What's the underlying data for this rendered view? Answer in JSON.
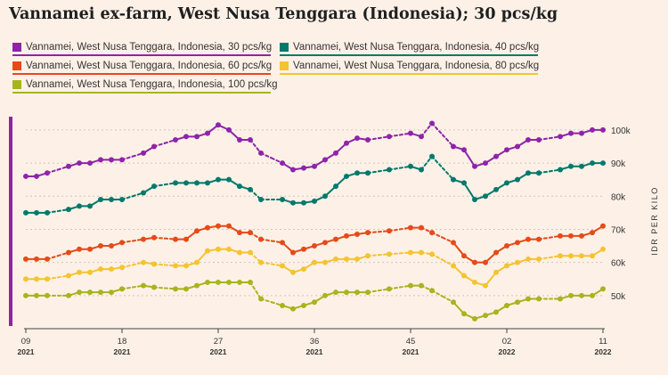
{
  "title": "Vannamei ex-farm, West Nusa Tenggara (Indonesia); 30 pcs/kg",
  "colors": {
    "accent_bar": "#8e24aa",
    "grid": "#cfc6bd",
    "text": "#222222"
  },
  "chart_data": {
    "type": "line",
    "title": "Vannamei ex-farm, West Nusa Tenggara (Indonesia); 30 pcs/kg",
    "ylabel": "IDR PER KILO",
    "ylim": [
      40000,
      104000
    ],
    "yticks": [
      {
        "value": 50000,
        "label": "50k"
      },
      {
        "value": 60000,
        "label": "60k"
      },
      {
        "value": 70000,
        "label": "70k"
      },
      {
        "value": 80000,
        "label": "80k"
      },
      {
        "value": 90000,
        "label": "90k"
      },
      {
        "value": 100000,
        "label": "100k"
      }
    ],
    "xticks": [
      {
        "week": "09",
        "year": "2021",
        "index": 0
      },
      {
        "week": "18",
        "year": "2021",
        "index": 9
      },
      {
        "week": "27",
        "year": "2021",
        "index": 18
      },
      {
        "week": "36",
        "year": "2021",
        "index": 27
      },
      {
        "week": "45",
        "year": "2021",
        "index": 36
      },
      {
        "week": "02",
        "year": "2022",
        "index": 45
      },
      {
        "week": "11",
        "year": "2022",
        "index": 54
      }
    ],
    "grid": true,
    "legend_position": "top-left",
    "series": [
      {
        "name": "Vannamei, West Nusa Tenggara, Indonesia, 30 pcs/kg",
        "color": "#8e24aa",
        "values": [
          86000,
          86000,
          87000,
          null,
          89000,
          90000,
          90000,
          91000,
          91000,
          91000,
          null,
          93000,
          95000,
          null,
          97000,
          98000,
          98000,
          99000,
          101500,
          100000,
          97000,
          97000,
          93000,
          null,
          90000,
          88000,
          88500,
          89000,
          91000,
          93000,
          96000,
          97500,
          97000,
          null,
          98000,
          null,
          99000,
          98000,
          102000,
          null,
          95000,
          94000,
          89000,
          90000,
          92000,
          94000,
          95000,
          97000,
          97000,
          null,
          98000,
          99000,
          99000,
          100000,
          100000
        ],
        "dashed_from": [
          2,
          9,
          12,
          21,
          32,
          37,
          39,
          48
        ]
      },
      {
        "name": "Vannamei, West Nusa Tenggara, Indonesia, 40 pcs/kg",
        "color": "#00796b",
        "values": [
          75000,
          75000,
          75000,
          null,
          76000,
          77000,
          77000,
          79000,
          79000,
          79000,
          null,
          81000,
          83000,
          null,
          84000,
          84000,
          84000,
          84000,
          85000,
          85000,
          83000,
          82000,
          79000,
          null,
          79000,
          78000,
          78000,
          78500,
          80000,
          83000,
          86000,
          87000,
          87000,
          null,
          88000,
          null,
          89000,
          88000,
          92000,
          null,
          85000,
          84000,
          79000,
          80000,
          82000,
          84000,
          85000,
          87000,
          87000,
          null,
          88000,
          89000,
          89000,
          90000,
          90000
        ],
        "dashed_from": [
          2,
          9,
          12,
          21,
          32,
          37,
          39,
          48
        ]
      },
      {
        "name": "Vannamei, West Nusa Tenggara, Indonesia, 60 pcs/kg",
        "color": "#e64a19",
        "values": [
          61000,
          61000,
          61000,
          null,
          63000,
          64000,
          64000,
          65000,
          65000,
          66000,
          null,
          67000,
          67500,
          null,
          67000,
          67000,
          69500,
          70500,
          71000,
          71000,
          69000,
          69000,
          67000,
          null,
          66000,
          63000,
          64000,
          65000,
          66000,
          67000,
          68000,
          68500,
          69000,
          null,
          69500,
          null,
          70500,
          70500,
          69000,
          null,
          66000,
          62000,
          60000,
          60000,
          63000,
          65000,
          66000,
          67000,
          67000,
          null,
          68000,
          68000,
          68000,
          69000,
          71000
        ],
        "dashed_from": [
          2,
          9,
          12,
          21,
          32,
          37,
          39,
          48
        ]
      },
      {
        "name": "Vannamei, West Nusa Tenggara, Indonesia, 80 pcs/kg",
        "color": "#f4c430",
        "values": [
          55000,
          55000,
          55000,
          null,
          56000,
          57000,
          57000,
          58000,
          58000,
          58500,
          null,
          60000,
          59500,
          null,
          59000,
          59000,
          60000,
          63500,
          64000,
          64000,
          63000,
          63000,
          60000,
          null,
          59000,
          57000,
          58000,
          60000,
          60000,
          61000,
          61000,
          61000,
          62000,
          null,
          62500,
          null,
          63000,
          63000,
          62500,
          null,
          59000,
          56000,
          54000,
          53000,
          57000,
          59000,
          60000,
          61000,
          61000,
          null,
          62000,
          62000,
          62000,
          62000,
          64000
        ],
        "dashed_from": [
          2,
          9,
          12,
          21,
          32,
          37,
          39,
          48
        ]
      },
      {
        "name": "Vannamei, West Nusa Tenggara, Indonesia, 100 pcs/kg",
        "color": "#a8b41e",
        "values": [
          50000,
          50000,
          50000,
          null,
          50000,
          51000,
          51000,
          51000,
          51000,
          52000,
          null,
          53000,
          52500,
          null,
          52000,
          52000,
          53000,
          54000,
          54000,
          54000,
          54000,
          54000,
          49000,
          null,
          47000,
          46000,
          47000,
          48000,
          50000,
          51000,
          51000,
          51000,
          51000,
          null,
          52000,
          null,
          53000,
          53000,
          51500,
          null,
          48000,
          44500,
          43000,
          44000,
          45000,
          47000,
          48000,
          49000,
          49000,
          null,
          49000,
          50000,
          50000,
          50000,
          52000
        ],
        "dashed_from": [
          2,
          9,
          12,
          21,
          32,
          37,
          39,
          48
        ]
      }
    ]
  }
}
